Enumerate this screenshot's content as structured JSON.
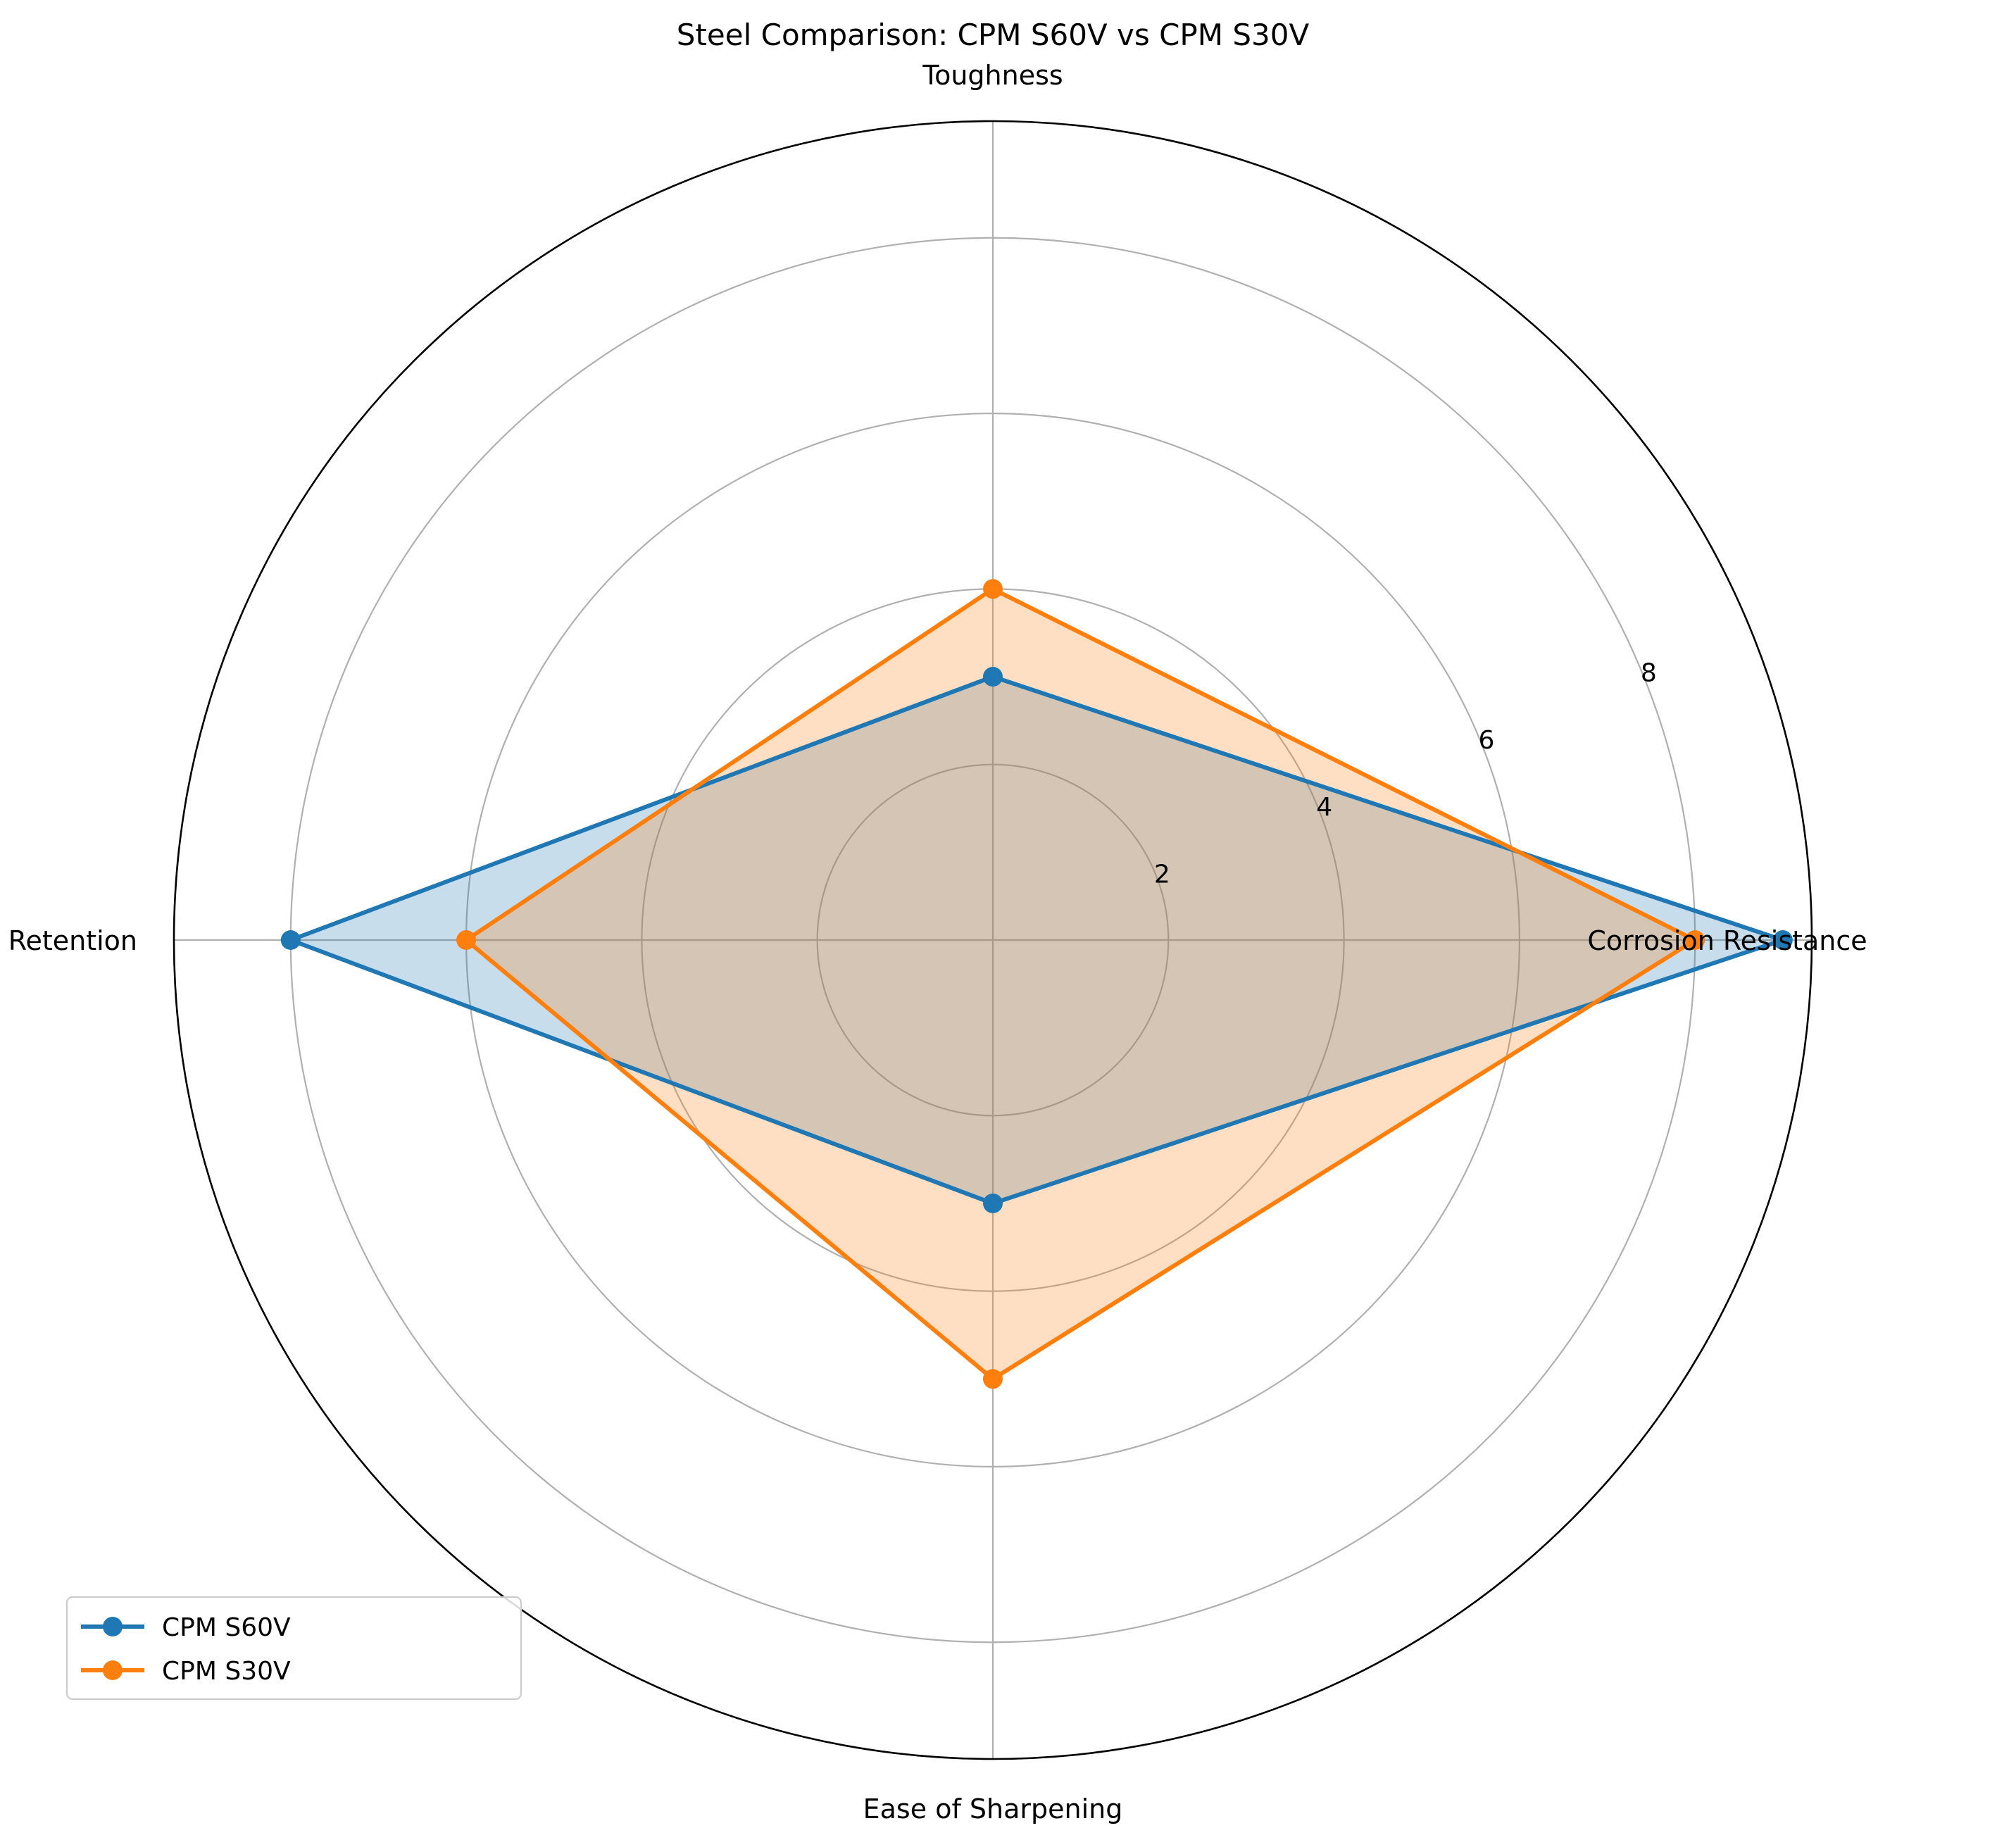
{
  "chart_data": {
    "type": "radar",
    "title": "Steel Comparison: CPM S60V vs CPM S30V",
    "categories": [
      "Toughness",
      "Corrosion Resistance",
      "Ease of Sharpening",
      "Edge Retention"
    ],
    "radial_ticks": [
      "2",
      "4",
      "6",
      "8"
    ],
    "radial_tick_values": [
      2,
      4,
      6,
      8
    ],
    "rlim": [
      0,
      9.33
    ],
    "grid": true,
    "legend_position": "lower-left",
    "series": [
      {
        "name": "CPM S60V",
        "color": "#1f77b4",
        "values": [
          3,
          9,
          3,
          8
        ]
      },
      {
        "name": "CPM S30V",
        "color": "#ff7f0e",
        "values": [
          4,
          8,
          5,
          6
        ]
      }
    ]
  }
}
